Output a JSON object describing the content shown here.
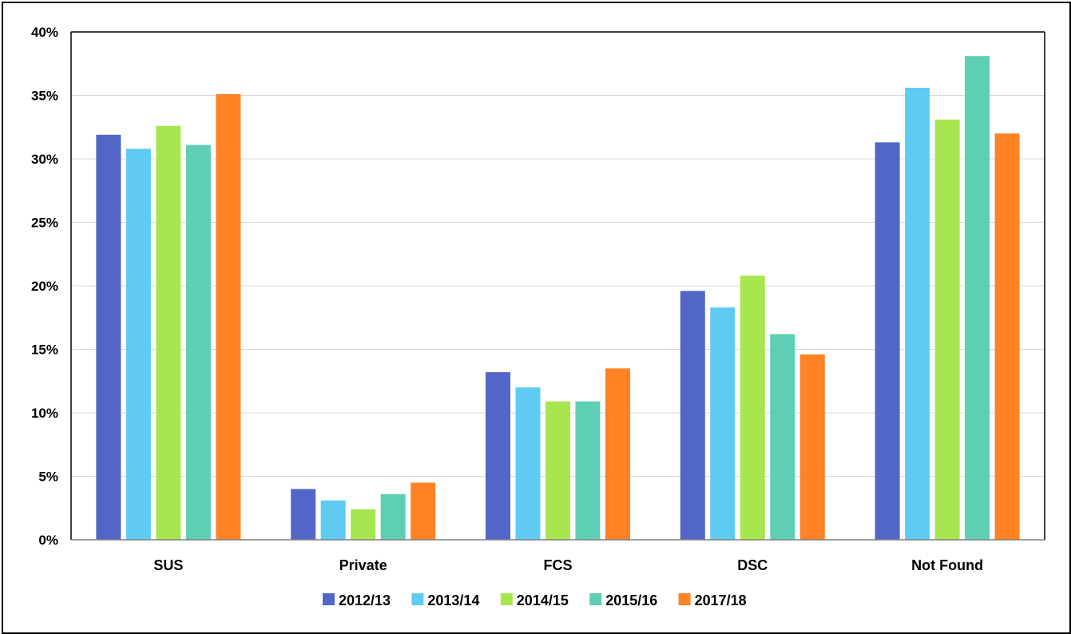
{
  "chart_data": {
    "type": "bar",
    "title": "",
    "xlabel": "",
    "ylabel": "",
    "categories": [
      "SUS",
      "Private",
      "FCS",
      "DSC",
      "Not Found"
    ],
    "series": [
      {
        "name": "2012/13",
        "color": "#5266C8",
        "values": [
          31.9,
          4.0,
          13.2,
          19.6,
          31.3
        ]
      },
      {
        "name": "2013/14",
        "color": "#5FCBF3",
        "values": [
          30.8,
          3.1,
          12.0,
          18.3,
          35.6
        ]
      },
      {
        "name": "2014/15",
        "color": "#A8E650",
        "values": [
          32.6,
          2.4,
          10.9,
          20.8,
          33.1
        ]
      },
      {
        "name": "2015/16",
        "color": "#5ECFB2",
        "values": [
          31.1,
          3.6,
          10.9,
          16.2,
          38.1
        ]
      },
      {
        "name": "2017/18",
        "color": "#FF8224",
        "values": [
          35.1,
          4.5,
          13.5,
          14.6,
          32.0
        ]
      }
    ],
    "ylim": [
      0,
      40
    ],
    "yticks": [
      0,
      5,
      10,
      15,
      20,
      25,
      30,
      35,
      40
    ],
    "ytick_labels": [
      "0%",
      "5%",
      "10%",
      "15%",
      "20%",
      "25%",
      "30%",
      "35%",
      "40%"
    ],
    "grid": true,
    "legend_position": "bottom"
  }
}
